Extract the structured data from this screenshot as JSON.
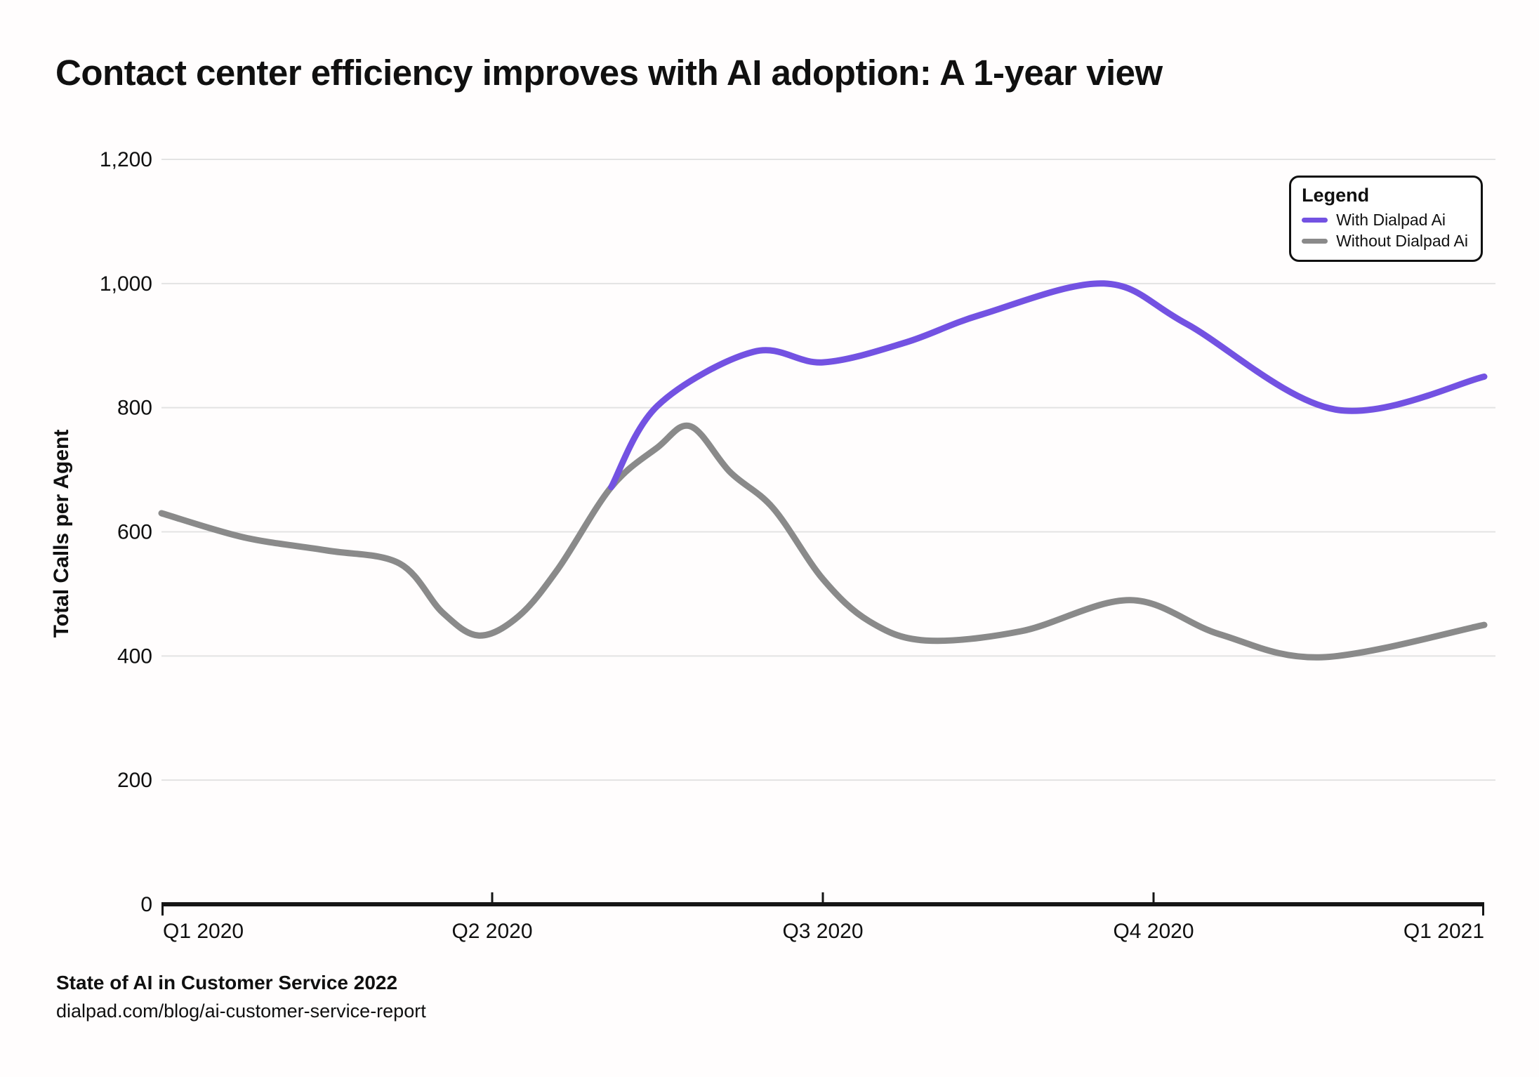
{
  "title": "Contact center efficiency improves with AI adoption: A 1-year view",
  "legend": {
    "title": "Legend"
  },
  "footer": {
    "source": "State of AI in Customer Service 2022",
    "url": "dialpad.com/blog/ai-customer-service-report"
  },
  "colors": {
    "accent_purple": "#7352E2",
    "line_gray": "#8A8A8A",
    "gridline": "#E3E3E3",
    "axis": "#151515",
    "text": "#101010"
  },
  "chart_data": {
    "type": "line",
    "title": "Contact center efficiency improves with AI adoption: A 1-year view",
    "xlabel": "",
    "ylabel": "Total Calls per Agent",
    "ylim": [
      0,
      1200
    ],
    "grid": true,
    "legend_position": "top-right",
    "x_ticks": [
      {
        "label": "Q1 2020",
        "t": 0
      },
      {
        "label": "Q2 2020",
        "t": 1
      },
      {
        "label": "Q3 2020",
        "t": 2
      },
      {
        "label": "Q4 2020",
        "t": 3
      },
      {
        "label": "Q1 2021",
        "t": 4
      }
    ],
    "y_ticks": [
      {
        "label": "0",
        "v": 0
      },
      {
        "label": "200",
        "v": 200
      },
      {
        "label": "400",
        "v": 400
      },
      {
        "label": "600",
        "v": 600
      },
      {
        "label": "800",
        "v": 800
      },
      {
        "label": "1,000",
        "v": 1000
      },
      {
        "label": "1,200",
        "v": 1200
      }
    ],
    "series": [
      {
        "name": "With Dialpad Ai",
        "color": "#7352E2",
        "points": [
          {
            "t": 1.36,
            "v": 672
          },
          {
            "t": 1.5,
            "v": 803
          },
          {
            "t": 1.79,
            "v": 890
          },
          {
            "t": 2.0,
            "v": 873
          },
          {
            "t": 2.25,
            "v": 905
          },
          {
            "t": 2.48,
            "v": 950
          },
          {
            "t": 2.85,
            "v": 1000
          },
          {
            "t": 3.1,
            "v": 935
          },
          {
            "t": 3.55,
            "v": 797
          },
          {
            "t": 4.0,
            "v": 850
          }
        ]
      },
      {
        "name": "Without Dialpad Ai",
        "color": "#8A8A8A",
        "points": [
          {
            "t": 0.0,
            "v": 630
          },
          {
            "t": 0.25,
            "v": 591
          },
          {
            "t": 0.5,
            "v": 570
          },
          {
            "t": 0.72,
            "v": 549
          },
          {
            "t": 0.85,
            "v": 470
          },
          {
            "t": 0.96,
            "v": 433
          },
          {
            "t": 1.08,
            "v": 464
          },
          {
            "t": 1.2,
            "v": 541
          },
          {
            "t": 1.36,
            "v": 672
          },
          {
            "t": 1.5,
            "v": 736
          },
          {
            "t": 1.6,
            "v": 770
          },
          {
            "t": 1.72,
            "v": 696
          },
          {
            "t": 1.85,
            "v": 638
          },
          {
            "t": 2.0,
            "v": 524
          },
          {
            "t": 2.14,
            "v": 456
          },
          {
            "t": 2.31,
            "v": 425
          },
          {
            "t": 2.6,
            "v": 440
          },
          {
            "t": 2.93,
            "v": 490
          },
          {
            "t": 3.2,
            "v": 435
          },
          {
            "t": 3.51,
            "v": 398
          },
          {
            "t": 4.0,
            "v": 450
          }
        ]
      }
    ]
  }
}
